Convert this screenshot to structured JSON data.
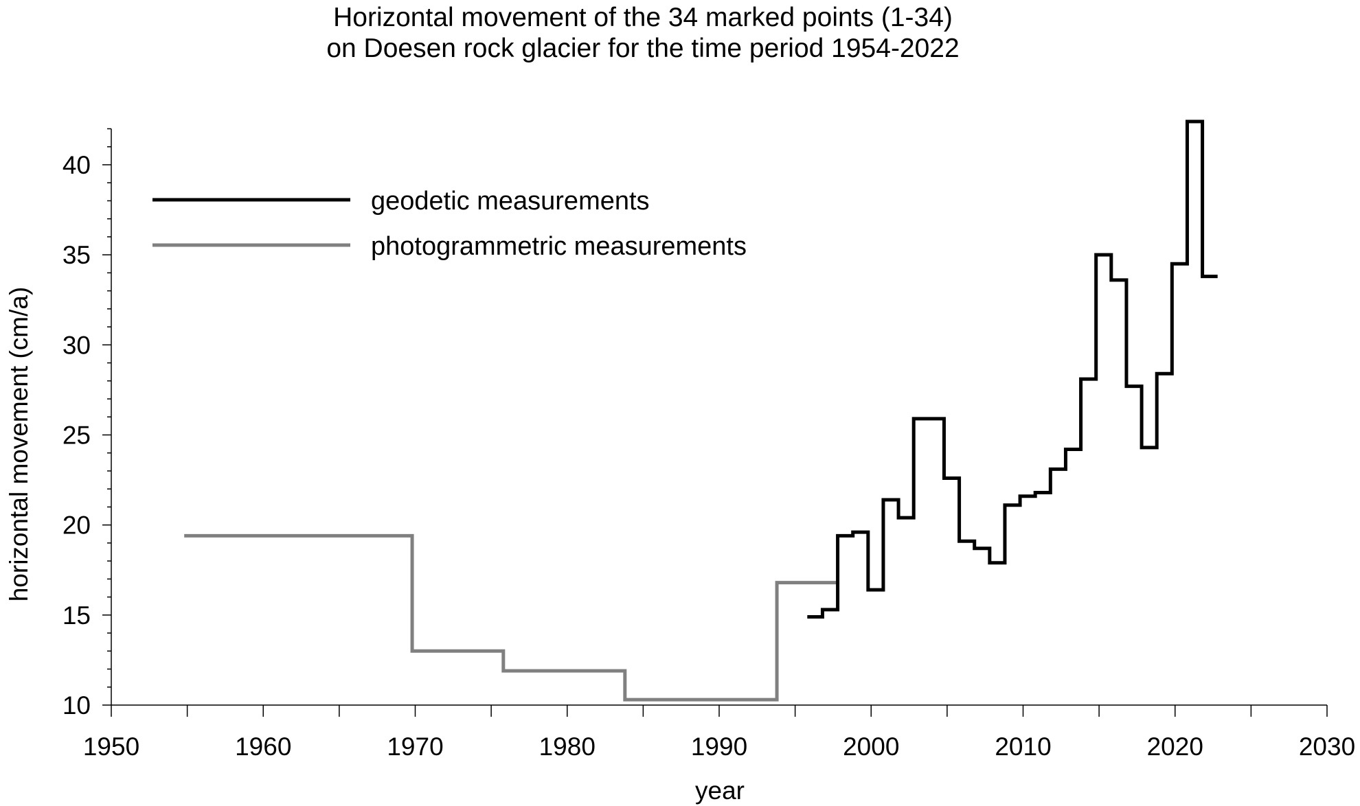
{
  "chart_data": {
    "type": "line",
    "title_lines": [
      "Horizontal movement of the 34 marked points (1-34)",
      "on Doesen rock glacier for the time period 1954-2022"
    ],
    "xlabel": "year",
    "ylabel": "horizontal movement (cm/a)",
    "xlim": [
      1950,
      2030
    ],
    "ylim": [
      10,
      42
    ],
    "x_ticks": [
      1950,
      1960,
      1970,
      1980,
      1990,
      2000,
      2010,
      2020,
      2030
    ],
    "x_tick_labels": [
      "1950",
      "1960",
      "1970",
      "1980",
      "1990",
      "2000",
      "2010",
      "2020",
      "2030"
    ],
    "x_minor_step": 5,
    "y_ticks": [
      10,
      15,
      20,
      25,
      30,
      35,
      40
    ],
    "y_tick_labels": [
      "10",
      "15",
      "20",
      "25",
      "30",
      "35",
      "40"
    ],
    "y_minor_step": 1,
    "grid": false,
    "legend_position": "top-left",
    "series": [
      {
        "name": "geodetic measurements",
        "color": "#000000",
        "segments": [
          [
            1995.8,
            1996.8,
            14.9
          ],
          [
            1996.8,
            1997.8,
            15.3
          ],
          [
            1997.8,
            1998.8,
            19.4
          ],
          [
            1998.8,
            1999.8,
            19.6
          ],
          [
            1999.8,
            2000.8,
            16.4
          ],
          [
            2000.8,
            2001.8,
            21.4
          ],
          [
            2001.8,
            2002.8,
            20.4
          ],
          [
            2002.8,
            2004.8,
            25.9
          ],
          [
            2004.8,
            2005.8,
            22.6
          ],
          [
            2005.8,
            2006.8,
            19.1
          ],
          [
            2006.8,
            2007.8,
            18.7
          ],
          [
            2007.8,
            2008.8,
            17.9
          ],
          [
            2008.8,
            2009.8,
            21.1
          ],
          [
            2009.8,
            2010.8,
            21.6
          ],
          [
            2010.8,
            2011.8,
            21.8
          ],
          [
            2011.8,
            2012.8,
            23.1
          ],
          [
            2012.8,
            2013.8,
            24.2
          ],
          [
            2013.8,
            2014.8,
            28.1
          ],
          [
            2014.8,
            2015.8,
            35.0
          ],
          [
            2015.8,
            2016.8,
            33.6
          ],
          [
            2016.8,
            2017.8,
            27.7
          ],
          [
            2017.8,
            2018.8,
            24.3
          ],
          [
            2018.8,
            2019.8,
            28.4
          ],
          [
            2019.8,
            2020.8,
            34.5
          ],
          [
            2020.8,
            2021.8,
            42.4
          ],
          [
            2021.8,
            2022.8,
            33.8
          ]
        ]
      },
      {
        "name": "photogrammetric measurements",
        "color": "#808080",
        "segments": [
          [
            1954.8,
            1969.8,
            19.4
          ],
          [
            1969.8,
            1975.8,
            13.0
          ],
          [
            1975.8,
            1983.8,
            11.9
          ],
          [
            1983.8,
            1993.8,
            10.3
          ],
          [
            1993.8,
            1997.8,
            16.8
          ]
        ]
      }
    ]
  }
}
